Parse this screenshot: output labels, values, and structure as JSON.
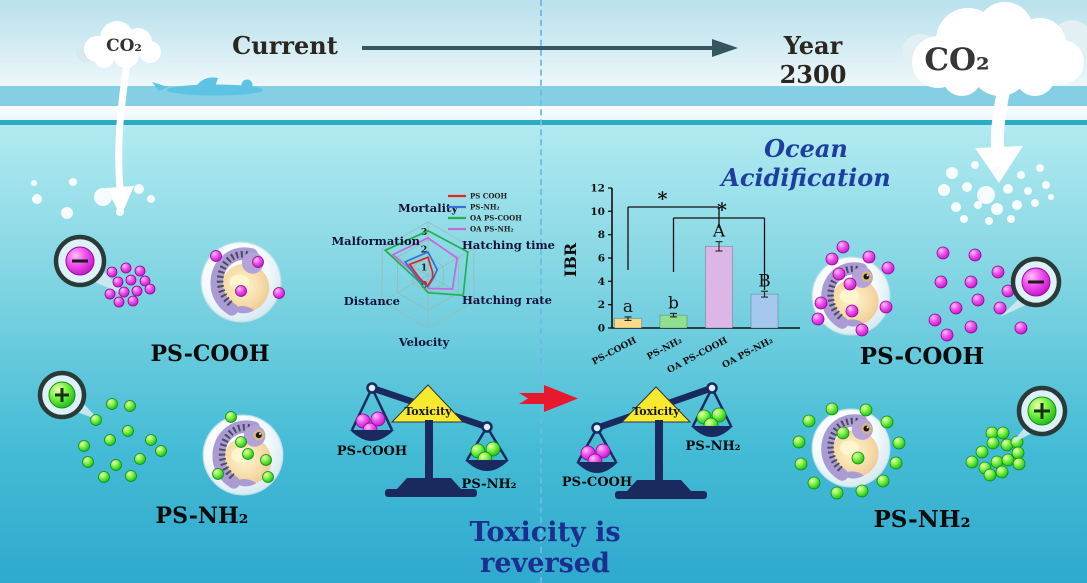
{
  "header": {
    "co2_left": "CO₂",
    "co2_right": "CO₂",
    "current_label": "Current",
    "year_label": "Year 2300",
    "ocean_acidification": "Ocean Acidification"
  },
  "panels": {
    "left": {
      "ps_cooh": "PS-COOH",
      "ps_nh2": "PS-NH₂"
    },
    "right": {
      "ps_cooh": "PS-COOH",
      "ps_nh2": "PS-NH₂"
    }
  },
  "balance": {
    "toxicity_label": "Toxicity",
    "left_scale": {
      "left_pan_label": "PS-COOH",
      "right_pan_label": "PS-NH₂",
      "heavier_side": "PS-NH₂"
    },
    "right_scale": {
      "left_pan_label": "PS-COOH",
      "right_pan_label": "PS-NH₂",
      "heavier_side": "PS-COOH"
    },
    "caption": "Toxicity is reversed"
  },
  "colors": {
    "ps_cooh_particle": "#d81ed8",
    "ps_nh2_particle": "#35d035",
    "toxicity_yellow": "#f6e92e",
    "scale_navy": "#1b2a5e",
    "red_arrow": "#e8192c",
    "caption_blue": "#1c2f8f",
    "water_deep": "#31abce"
  },
  "chart_data": [
    {
      "type": "radar",
      "title": "",
      "categories": [
        "Mortality",
        "Hatching time",
        "Hatching rate",
        "Velocity",
        "Distance",
        "Malformation"
      ],
      "rlim": [
        0,
        3
      ],
      "rticks": [
        0,
        1,
        2,
        3
      ],
      "grid": true,
      "legend_position": "top-right",
      "series": [
        {
          "name": "PS COOH",
          "color": "#e8231f",
          "values": [
            1.0,
            0.3,
            0.3,
            0.6,
            0.5,
            1.2
          ]
        },
        {
          "name": "PS-NH₂",
          "color": "#3b6fd4",
          "values": [
            1.3,
            0.6,
            0.35,
            0.65,
            0.6,
            1.5
          ]
        },
        {
          "name": "OA PS-COOH",
          "color": "#22b14c",
          "values": [
            2.5,
            2.6,
            2.3,
            1.0,
            0.65,
            2.8
          ]
        },
        {
          "name": "OA PS-NH₂",
          "color": "#cc66dd",
          "values": [
            2.1,
            1.9,
            1.6,
            0.75,
            0.45,
            2.3
          ]
        }
      ]
    },
    {
      "type": "bar",
      "title": "",
      "xlabel": "",
      "ylabel": "IBR",
      "ylim": [
        0,
        12
      ],
      "yticks": [
        0,
        2,
        4,
        6,
        8,
        10,
        12
      ],
      "categories": [
        "PS-COOH",
        "PS-NH₂",
        "OA PS-COOH",
        "OA PS-NH₂"
      ],
      "values": [
        0.8,
        1.1,
        7.0,
        2.9
      ],
      "errors": [
        0.15,
        0.15,
        0.4,
        0.25
      ],
      "bar_letters": [
        "a",
        "b",
        "A",
        "B"
      ],
      "bar_colors": [
        "#fbd98b",
        "#8fe08f",
        "#dcb6e6",
        "#a6c8ee"
      ],
      "significance": [
        {
          "from": 0,
          "to": 2,
          "label": "*"
        },
        {
          "from": 1,
          "to": 3,
          "label": "*"
        }
      ]
    }
  ]
}
